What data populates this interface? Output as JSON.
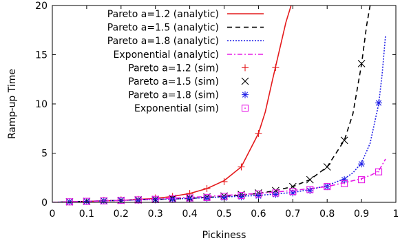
{
  "chart_data": {
    "type": "line",
    "xlabel": "Pickiness",
    "ylabel": "Ramp-up Time",
    "xlim": [
      0,
      1
    ],
    "ylim": [
      0,
      20
    ],
    "xticks": [
      "0",
      "0.1",
      "0.2",
      "0.3",
      "0.4",
      "0.5",
      "0.6",
      "0.7",
      "0.8",
      "0.9",
      "1"
    ],
    "yticks": [
      "0",
      "5",
      "10",
      "15",
      "20"
    ],
    "grid": false,
    "legend_position": "top-left",
    "series": [
      {
        "name": "Pareto a=1.2 (analytic)",
        "kind": "line",
        "dash": "solid",
        "color": "#e41a1c",
        "x": [
          0,
          0.1,
          0.2,
          0.3,
          0.35,
          0.4,
          0.45,
          0.5,
          0.55,
          0.6,
          0.62,
          0.64,
          0.66,
          0.68,
          0.695
        ],
        "y": [
          0,
          0.1,
          0.2,
          0.4,
          0.6,
          0.9,
          1.4,
          2.2,
          3.6,
          7.0,
          9.2,
          12.3,
          15.3,
          18.3,
          20
        ]
      },
      {
        "name": "Pareto a=1.5 (analytic)",
        "kind": "line",
        "dash": "dashed",
        "color": "#000000",
        "x": [
          0,
          0.2,
          0.4,
          0.5,
          0.6,
          0.65,
          0.7,
          0.75,
          0.8,
          0.85,
          0.875,
          0.9,
          0.915,
          0.925
        ],
        "y": [
          0,
          0.2,
          0.4,
          0.6,
          0.9,
          1.2,
          1.6,
          2.3,
          3.6,
          6.3,
          9.0,
          14.0,
          18.0,
          20
        ]
      },
      {
        "name": "Pareto a=1.8 (analytic)",
        "kind": "line",
        "dash": "dotted",
        "color": "#1f1fe6",
        "x": [
          0,
          0.2,
          0.4,
          0.6,
          0.7,
          0.75,
          0.8,
          0.85,
          0.875,
          0.9,
          0.925,
          0.95,
          0.96,
          0.97
        ],
        "y": [
          0,
          0.2,
          0.4,
          0.7,
          1.0,
          1.3,
          1.7,
          2.4,
          3.0,
          4.0,
          6.0,
          10.0,
          13.0,
          17.0
        ]
      },
      {
        "name": "Exponential (analytic)",
        "kind": "line",
        "dash": "dashdot",
        "color": "#e61ae6",
        "x": [
          0,
          0.2,
          0.4,
          0.6,
          0.7,
          0.8,
          0.85,
          0.9,
          0.93,
          0.95,
          0.97
        ],
        "y": [
          0,
          0.2,
          0.5,
          0.9,
          1.2,
          1.6,
          2.0,
          2.4,
          2.8,
          3.2,
          4.4
        ]
      },
      {
        "name": "Pareto a=1.2 (sim)",
        "kind": "points",
        "marker": "plus",
        "color": "#e41a1c",
        "x": [
          0.05,
          0.1,
          0.15,
          0.2,
          0.25,
          0.3,
          0.35,
          0.4,
          0.45,
          0.5,
          0.55,
          0.6,
          0.65
        ],
        "y": [
          0.05,
          0.1,
          0.2,
          0.25,
          0.3,
          0.45,
          0.6,
          0.9,
          1.4,
          2.1,
          3.6,
          7.0,
          13.7
        ]
      },
      {
        "name": "Pareto a=1.5 (sim)",
        "kind": "points",
        "marker": "cross",
        "color": "#000000",
        "x": [
          0.05,
          0.1,
          0.15,
          0.2,
          0.25,
          0.3,
          0.35,
          0.4,
          0.45,
          0.5,
          0.55,
          0.6,
          0.65,
          0.7,
          0.75,
          0.8,
          0.85,
          0.9
        ],
        "y": [
          0.05,
          0.1,
          0.15,
          0.2,
          0.25,
          0.3,
          0.4,
          0.45,
          0.55,
          0.65,
          0.8,
          0.95,
          1.2,
          1.6,
          2.3,
          3.6,
          6.3,
          14.1
        ]
      },
      {
        "name": "Pareto a=1.8 (sim)",
        "kind": "points",
        "marker": "star",
        "color": "#1f1fe6",
        "x": [
          0.05,
          0.1,
          0.15,
          0.2,
          0.25,
          0.3,
          0.35,
          0.4,
          0.45,
          0.5,
          0.55,
          0.6,
          0.65,
          0.7,
          0.75,
          0.8,
          0.85,
          0.9,
          0.95
        ],
        "y": [
          0.05,
          0.1,
          0.15,
          0.2,
          0.2,
          0.25,
          0.3,
          0.35,
          0.4,
          0.45,
          0.55,
          0.65,
          0.8,
          0.95,
          1.2,
          1.6,
          2.3,
          3.9,
          10.1
        ]
      },
      {
        "name": "Exponential (sim)",
        "kind": "points",
        "marker": "square-dot",
        "color": "#e61ae6",
        "x": [
          0.05,
          0.1,
          0.15,
          0.2,
          0.25,
          0.3,
          0.35,
          0.4,
          0.45,
          0.5,
          0.55,
          0.6,
          0.65,
          0.7,
          0.75,
          0.8,
          0.85,
          0.9,
          0.95
        ],
        "y": [
          0.05,
          0.1,
          0.15,
          0.2,
          0.25,
          0.3,
          0.35,
          0.45,
          0.5,
          0.6,
          0.7,
          0.85,
          0.95,
          1.1,
          1.3,
          1.6,
          1.9,
          2.3,
          3.1
        ]
      }
    ]
  }
}
